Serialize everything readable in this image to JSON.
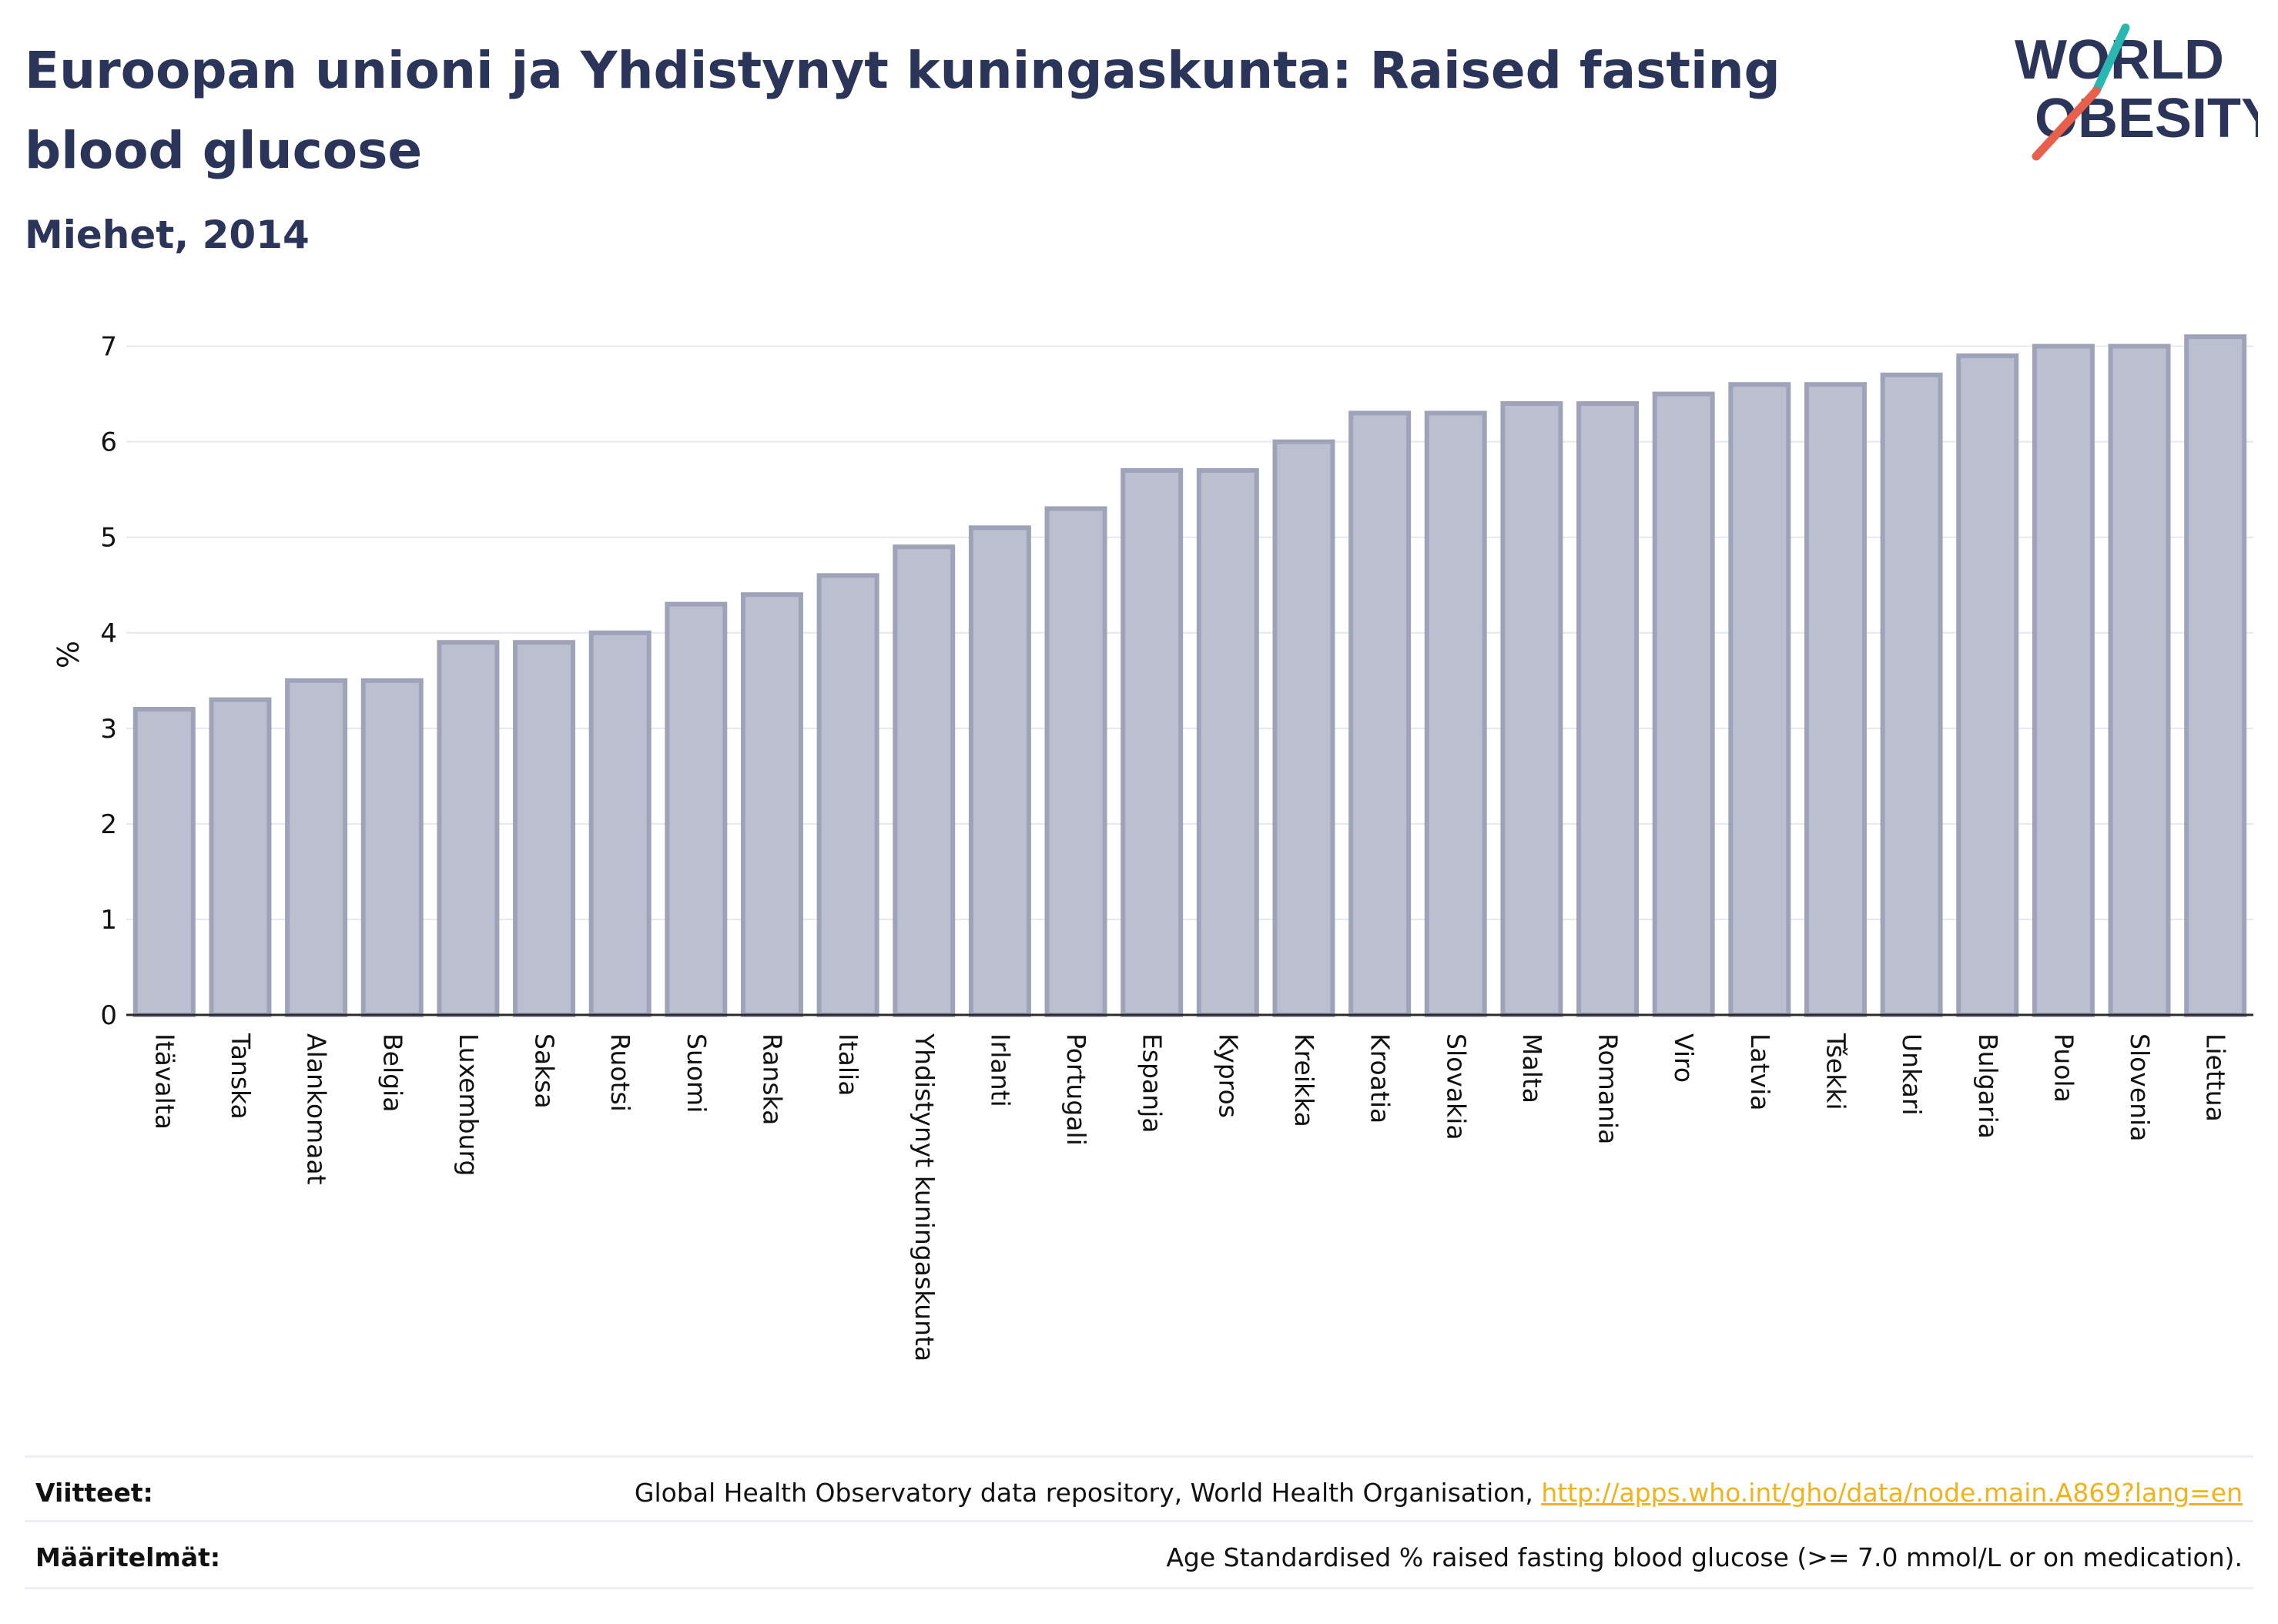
{
  "header": {
    "title": "Euroopan unioni ja Yhdistynyt kuningaskunta: Raised fasting blood glucose",
    "subtitle": "Miehet, 2014"
  },
  "logo": {
    "line1": "WORLD",
    "line2": "OBESITY",
    "accent_teal": "#2ab7b1",
    "accent_red": "#e8604c",
    "text_color": "#2b3459"
  },
  "chart_data": {
    "type": "bar",
    "ylabel": "%",
    "xlabel": "",
    "ylim": [
      0,
      7.4
    ],
    "yticks": [
      0,
      1,
      2,
      3,
      4,
      5,
      6,
      7
    ],
    "grid": true,
    "bar_fill": "#bcbfcf",
    "bar_stroke": "#9ea3ba",
    "categories": [
      "Itävalta",
      "Tanska",
      "Alankomaat",
      "Belgia",
      "Luxemburg",
      "Saksa",
      "Ruotsi",
      "Suomi",
      "Ranska",
      "Italia",
      "Yhdistynyt kuningaskunta",
      "Irlanti",
      "Portugali",
      "Espanja",
      "Kypros",
      "Kreikka",
      "Kroatia",
      "Slovakia",
      "Malta",
      "Romania",
      "Viro",
      "Latvia",
      "Tšekki",
      "Unkari",
      "Bulgaria",
      "Puola",
      "Slovenia",
      "Liettua"
    ],
    "values": [
      3.2,
      3.3,
      3.5,
      3.5,
      3.9,
      3.9,
      4.0,
      4.3,
      4.4,
      4.6,
      4.9,
      5.1,
      5.3,
      5.7,
      5.7,
      6.0,
      6.3,
      6.3,
      6.4,
      6.4,
      6.5,
      6.6,
      6.6,
      6.7,
      6.9,
      7.0,
      7.0,
      7.1
    ]
  },
  "footer": {
    "sources_label": "Viitteet:",
    "sources_text": "Global Health Observatory data repository, World Health Organisation, ",
    "sources_link": "http://apps.who.int/gho/data/node.main.A869?lang=en",
    "definitions_label": "Määritelmät:",
    "definitions_text": "Age Standardised % raised fasting blood glucose (>= 7.0 mmol/L or on medication)."
  }
}
